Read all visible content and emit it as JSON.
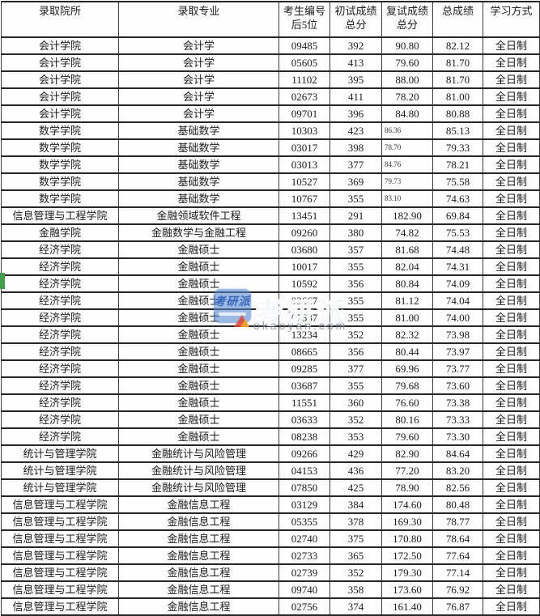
{
  "table": {
    "headers": [
      {
        "label": "录取院所"
      },
      {
        "label": "录取专业"
      },
      {
        "label": "考生编号\n后5位"
      },
      {
        "label": "初试成绩\n总分"
      },
      {
        "label": "复试成绩\n总分"
      },
      {
        "label": "总成绩"
      },
      {
        "label": "学习方式"
      }
    ],
    "rows": [
      {
        "college": "会计学院",
        "major": "会计学",
        "candidate_id": "09485",
        "initial_score": "392",
        "retest_score": "90.80",
        "total_score": "82.12",
        "study_mode": "全日制",
        "retest_small": false
      },
      {
        "college": "会计学院",
        "major": "会计学",
        "candidate_id": "05605",
        "initial_score": "413",
        "retest_score": "79.60",
        "total_score": "81.70",
        "study_mode": "全日制",
        "retest_small": false
      },
      {
        "college": "会计学院",
        "major": "会计学",
        "candidate_id": "11102",
        "initial_score": "395",
        "retest_score": "88.00",
        "total_score": "81.70",
        "study_mode": "全日制",
        "retest_small": false
      },
      {
        "college": "会计学院",
        "major": "会计学",
        "candidate_id": "02673",
        "initial_score": "411",
        "retest_score": "78.20",
        "total_score": "81.00",
        "study_mode": "全日制",
        "retest_small": false
      },
      {
        "college": "会计学院",
        "major": "会计学",
        "candidate_id": "09701",
        "initial_score": "396",
        "retest_score": "84.80",
        "total_score": "80.88",
        "study_mode": "全日制",
        "retest_small": false
      },
      {
        "college": "数学学院",
        "major": "基础数学",
        "candidate_id": "10303",
        "initial_score": "423",
        "retest_score": "86.36",
        "total_score": "85.13",
        "study_mode": "全日制",
        "retest_small": true
      },
      {
        "college": "数学学院",
        "major": "基础数学",
        "candidate_id": "03017",
        "initial_score": "398",
        "retest_score": "78.70",
        "total_score": "79.33",
        "study_mode": "全日制",
        "retest_small": true
      },
      {
        "college": "数学学院",
        "major": "基础数学",
        "candidate_id": "03013",
        "initial_score": "377",
        "retest_score": "84.76",
        "total_score": "78.21",
        "study_mode": "全日制",
        "retest_small": true
      },
      {
        "college": "数学学院",
        "major": "基础数学",
        "candidate_id": "10527",
        "initial_score": "369",
        "retest_score": "79.73",
        "total_score": "75.58",
        "study_mode": "全日制",
        "retest_small": true
      },
      {
        "college": "数学学院",
        "major": "基础数学",
        "candidate_id": "10767",
        "initial_score": "355",
        "retest_score": "83.10",
        "total_score": "74.63",
        "study_mode": "全日制",
        "retest_small": true
      },
      {
        "college": "信息管理与工程学院",
        "major": "金融领域软件工程",
        "candidate_id": "13451",
        "initial_score": "291",
        "retest_score": "182.90",
        "total_score": "69.84",
        "study_mode": "全日制",
        "retest_small": false
      },
      {
        "college": "金融学院",
        "major": "金融数学与金融工程",
        "candidate_id": "09260",
        "initial_score": "380",
        "retest_score": "74.82",
        "total_score": "75.53",
        "study_mode": "全日制",
        "retest_small": false
      },
      {
        "college": "经济学院",
        "major": "金融硕士",
        "candidate_id": "03680",
        "initial_score": "357",
        "retest_score": "81.68",
        "total_score": "74.48",
        "study_mode": "全日制",
        "retest_small": false
      },
      {
        "college": "经济学院",
        "major": "金融硕士",
        "candidate_id": "10017",
        "initial_score": "355",
        "retest_score": "82.04",
        "total_score": "74.31",
        "study_mode": "全日制",
        "retest_small": false
      },
      {
        "college": "经济学院",
        "major": "金融硕士",
        "candidate_id": "10592",
        "initial_score": "356",
        "retest_score": "80.84",
        "total_score": "74.09",
        "study_mode": "全日制",
        "retest_small": false
      },
      {
        "college": "经济学院",
        "major": "金融硕士",
        "candidate_id": "03667",
        "initial_score": "355",
        "retest_score": "81.12",
        "total_score": "74.04",
        "study_mode": "全日制",
        "retest_small": false
      },
      {
        "college": "经济学院",
        "major": "金融硕士",
        "candidate_id": "07687",
        "initial_score": "355",
        "retest_score": "81.00",
        "total_score": "74.00",
        "study_mode": "全日制",
        "retest_small": false
      },
      {
        "college": "经济学院",
        "major": "金融硕士",
        "candidate_id": "13234",
        "initial_score": "352",
        "retest_score": "82.32",
        "total_score": "73.98",
        "study_mode": "全日制",
        "retest_small": false
      },
      {
        "college": "经济学院",
        "major": "金融硕士",
        "candidate_id": "08665",
        "initial_score": "356",
        "retest_score": "80.44",
        "total_score": "73.97",
        "study_mode": "全日制",
        "retest_small": false
      },
      {
        "college": "经济学院",
        "major": "金融硕士",
        "candidate_id": "09285",
        "initial_score": "377",
        "retest_score": "69.96",
        "total_score": "73.77",
        "study_mode": "全日制",
        "retest_small": false
      },
      {
        "college": "经济学院",
        "major": "金融硕士",
        "candidate_id": "03687",
        "initial_score": "355",
        "retest_score": "79.68",
        "total_score": "73.60",
        "study_mode": "全日制",
        "retest_small": false
      },
      {
        "college": "经济学院",
        "major": "金融硕士",
        "candidate_id": "11551",
        "initial_score": "360",
        "retest_score": "76.60",
        "total_score": "73.38",
        "study_mode": "全日制",
        "retest_small": false
      },
      {
        "college": "经济学院",
        "major": "金融硕士",
        "candidate_id": "03633",
        "initial_score": "352",
        "retest_score": "80.16",
        "total_score": "73.33",
        "study_mode": "全日制",
        "retest_small": false
      },
      {
        "college": "经济学院",
        "major": "金融硕士",
        "candidate_id": "08238",
        "initial_score": "353",
        "retest_score": "79.60",
        "total_score": "73.30",
        "study_mode": "全日制",
        "retest_small": false
      },
      {
        "college": "统计与管理学院",
        "major": "金融统计与风险管理",
        "candidate_id": "09266",
        "initial_score": "429",
        "retest_score": "82.90",
        "total_score": "84.64",
        "study_mode": "全日制",
        "retest_small": false
      },
      {
        "college": "统计与管理学院",
        "major": "金融统计与风险管理",
        "candidate_id": "04153",
        "initial_score": "436",
        "retest_score": "77.20",
        "total_score": "83.20",
        "study_mode": "全日制",
        "retest_small": false
      },
      {
        "college": "统计与管理学院",
        "major": "金融统计与风险管理",
        "candidate_id": "07850",
        "initial_score": "425",
        "retest_score": "78.90",
        "total_score": "82.56",
        "study_mode": "全日制",
        "retest_small": false
      },
      {
        "college": "信息管理与工程学院",
        "major": "金融信息工程",
        "candidate_id": "03129",
        "initial_score": "384",
        "retest_score": "174.60",
        "total_score": "80.48",
        "study_mode": "全日制",
        "retest_small": false
      },
      {
        "college": "信息管理与工程学院",
        "major": "金融信息工程",
        "candidate_id": "05355",
        "initial_score": "378",
        "retest_score": "169.30",
        "total_score": "78.77",
        "study_mode": "全日制",
        "retest_small": false
      },
      {
        "college": "信息管理与工程学院",
        "major": "金融信息工程",
        "candidate_id": "02740",
        "initial_score": "375",
        "retest_score": "170.80",
        "total_score": "78.64",
        "study_mode": "全日制",
        "retest_small": false
      },
      {
        "college": "信息管理与工程学院",
        "major": "金融信息工程",
        "candidate_id": "02733",
        "initial_score": "365",
        "retest_score": "172.50",
        "total_score": "77.64",
        "study_mode": "全日制",
        "retest_small": false
      },
      {
        "college": "信息管理与工程学院",
        "major": "金融信息工程",
        "candidate_id": "02739",
        "initial_score": "352",
        "retest_score": "179.30",
        "total_score": "77.14",
        "study_mode": "全日制",
        "retest_small": false
      },
      {
        "college": "信息管理与工程学院",
        "major": "金融信息工程",
        "candidate_id": "09740",
        "initial_score": "358",
        "retest_score": "173.60",
        "total_score": "76.92",
        "study_mode": "全日制",
        "retest_small": false
      },
      {
        "college": "信息管理与工程学院",
        "major": "金融信息工程",
        "candidate_id": "02756",
        "initial_score": "374",
        "retest_score": "161.40",
        "total_score": "76.87",
        "study_mode": "全日制",
        "retest_small": false
      }
    ]
  },
  "watermark": {
    "logo_text": "考研派",
    "brand_text": "考研派",
    "site_text": "okaoyan.com",
    "logo_color": "#5688cf",
    "flag_red": "#e2432f",
    "flag_orange": "#f6a82c",
    "marker_green": "#3f9e46"
  }
}
